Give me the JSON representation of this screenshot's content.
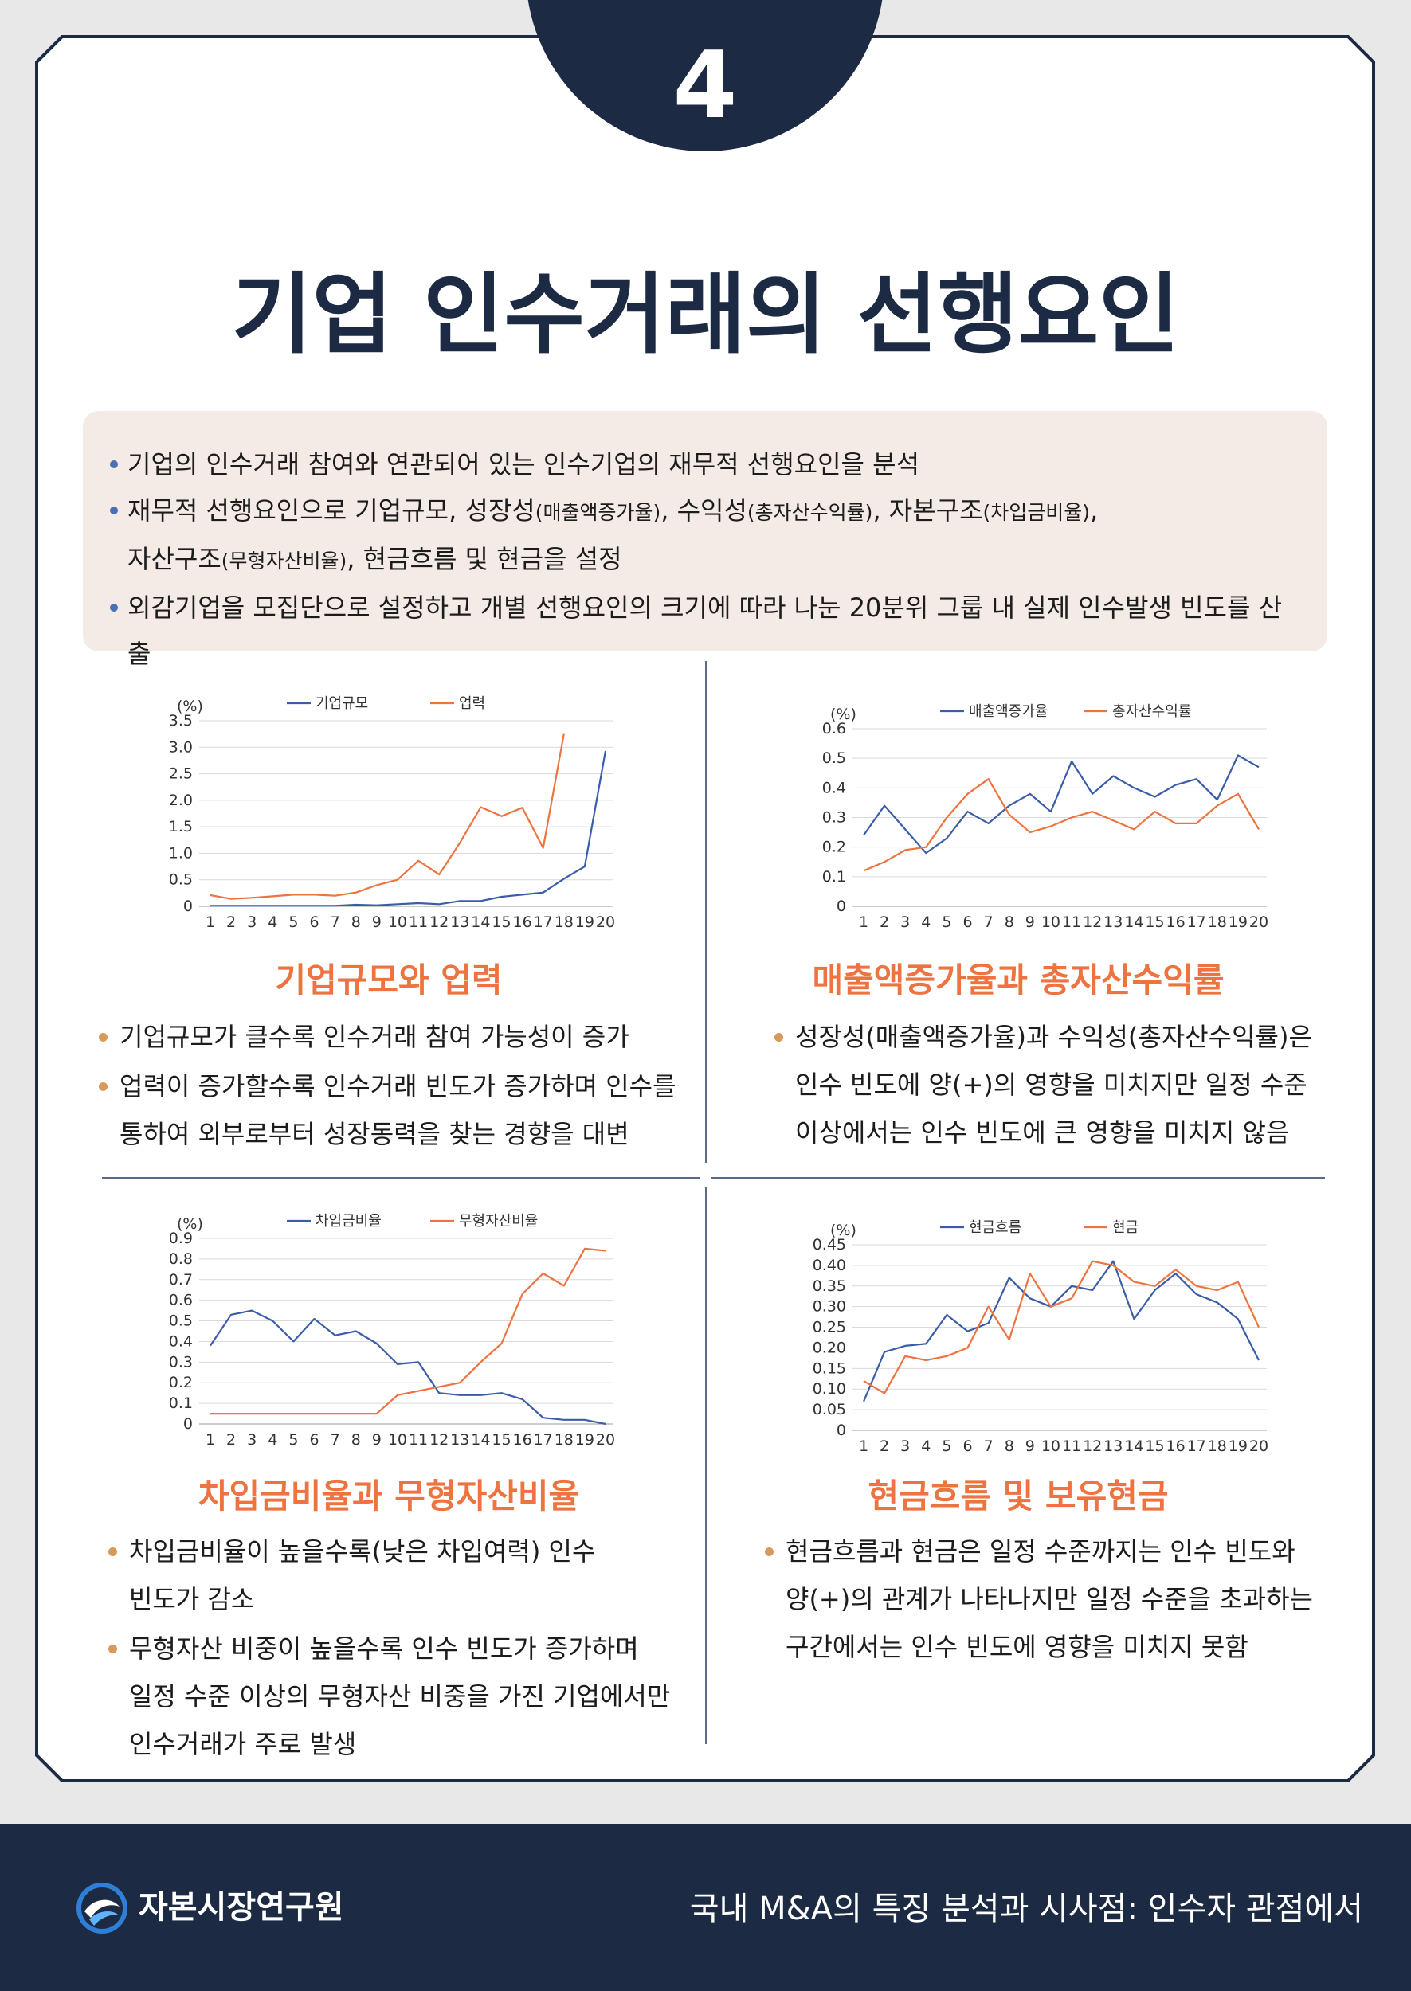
{
  "page": {
    "number": "4",
    "title": "기업 인수거래의 선행요인"
  },
  "summary": [
    {
      "parts": [
        {
          "text": "기업의 인수거래 참여와 연관되어 있는 인수기업의 재무적 선행요인을 분석",
          "small": false
        }
      ]
    },
    {
      "parts": [
        {
          "text": "재무적 선행요인으로 기업규모, 성장성",
          "small": false
        },
        {
          "text": "(매출액증가율)",
          "small": true
        },
        {
          "text": ", 수익성",
          "small": false
        },
        {
          "text": "(총자산수익률)",
          "small": true
        },
        {
          "text": ", 자본구조",
          "small": false
        },
        {
          "text": "(차입금비율)",
          "small": true
        },
        {
          "text": ",",
          "small": false
        }
      ]
    },
    {
      "indent": true,
      "parts": [
        {
          "text": "자산구조",
          "small": false
        },
        {
          "text": "(무형자산비율)",
          "small": true
        },
        {
          "text": ", 현금흐름 및 현금을 설정",
          "small": false
        }
      ]
    },
    {
      "parts": [
        {
          "text": "외감기업을 모집단으로 설정하고 개별 선행요인의 크기에 따라 나눈 20분위 그룹 내 실제 인수발생 빈도를 산출",
          "small": false
        }
      ]
    }
  ],
  "colors": {
    "blue": "#3b5da8",
    "orange": "#ed7340",
    "navy": "#1c2a44"
  },
  "panels": [
    {
      "title": "기업규모와 업력",
      "bullets": [
        [
          "기업규모가 클수록 인수거래 참여 가능성이 증가"
        ],
        [
          "업력이 증가할수록 인수거래 빈도가 증가하며 인수를",
          "통하여 외부로부터 성장동력을 찾는 경향을 대변"
        ]
      ]
    },
    {
      "title": "매출액증가율과 총자산수익률",
      "bullets": [
        [
          "성장성(매출액증가율)과 수익성(총자산수익률)은",
          "인수 빈도에 양(+)의 영향을 미치지만 일정 수준",
          "이상에서는 인수 빈도에 큰 영향을 미치지 않음"
        ]
      ]
    },
    {
      "title": "차입금비율과 무형자산비율",
      "bullets": [
        [
          "차입금비율이 높을수록(낮은 차입여력) 인수",
          "빈도가 감소"
        ],
        [
          "무형자산 비중이 높을수록 인수 빈도가 증가하며",
          "일정 수준 이상의 무형자산 비중을 가진 기업에서만",
          "인수거래가 주로 발생"
        ]
      ]
    },
    {
      "title": "현금흐름 및 보유현금",
      "bullets": [
        [
          "현금흐름과 현금은 일정 수준까지는 인수 빈도와",
          "양(+)의 관계가 나타나지만 일정 수준을 초과하는",
          "구간에서는 인수 빈도에 영향을 미치지 못함"
        ]
      ]
    }
  ],
  "chart_data": [
    {
      "type": "line",
      "unit_label": "(%)",
      "x": [
        1,
        2,
        3,
        4,
        5,
        6,
        7,
        8,
        9,
        10,
        11,
        12,
        13,
        14,
        15,
        16,
        17,
        18,
        19,
        20
      ],
      "ylim": [
        0,
        3.5
      ],
      "yticks": [
        "0",
        "0.5",
        "1.0",
        "1.5",
        "2.0",
        "2.5",
        "3.0",
        "3.5"
      ],
      "ytick_values": [
        0,
        0.5,
        1.0,
        1.5,
        2.0,
        2.5,
        3.0,
        3.5
      ],
      "legend": "top-center",
      "series": [
        {
          "name": "기업규모",
          "color": "#3b5da8",
          "values": [
            0.01,
            0.01,
            0.01,
            0.01,
            0.01,
            0.01,
            0.01,
            0.03,
            0.02,
            0.04,
            0.06,
            0.04,
            0.1,
            0.1,
            0.18,
            0.22,
            0.26,
            0.52,
            0.75,
            2.93
          ]
        },
        {
          "name": "업력",
          "color": "#ed7340",
          "values": [
            0.21,
            0.14,
            0.16,
            0.19,
            0.22,
            0.22,
            0.2,
            0.26,
            0.4,
            0.5,
            0.86,
            0.6,
            1.2,
            1.87,
            1.7,
            1.86,
            1.1,
            3.25,
            null,
            null
          ]
        }
      ]
    },
    {
      "type": "line",
      "unit_label": "(%)",
      "x": [
        1,
        2,
        3,
        4,
        5,
        6,
        7,
        8,
        9,
        10,
        11,
        12,
        13,
        14,
        15,
        16,
        17,
        18,
        19,
        20
      ],
      "ylim": [
        0,
        0.6
      ],
      "yticks": [
        "0",
        "0.1",
        "0.2",
        "0.3",
        "0.4",
        "0.5",
        "0.6"
      ],
      "ytick_values": [
        0,
        0.1,
        0.2,
        0.3,
        0.4,
        0.5,
        0.6
      ],
      "legend": "top-center",
      "series": [
        {
          "name": "매출액증가율",
          "color": "#3b5da8",
          "values": [
            0.24,
            0.34,
            0.26,
            0.18,
            0.23,
            0.32,
            0.28,
            0.34,
            0.38,
            0.32,
            0.49,
            0.38,
            0.44,
            0.4,
            0.37,
            0.41,
            0.43,
            0.36,
            0.51,
            0.47
          ]
        },
        {
          "name": "총자산수익률",
          "color": "#ed7340",
          "values": [
            0.12,
            0.15,
            0.19,
            0.2,
            0.3,
            0.38,
            0.43,
            0.31,
            0.25,
            0.27,
            0.3,
            0.32,
            0.29,
            0.26,
            0.32,
            0.28,
            0.28,
            0.34,
            0.38,
            0.26
          ]
        }
      ]
    },
    {
      "type": "line",
      "unit_label": "(%)",
      "x": [
        1,
        2,
        3,
        4,
        5,
        6,
        7,
        8,
        9,
        10,
        11,
        12,
        13,
        14,
        15,
        16,
        17,
        18,
        19,
        20
      ],
      "ylim": [
        0,
        0.9
      ],
      "yticks": [
        "0",
        "0.1",
        "0.2",
        "0.3",
        "0.4",
        "0.5",
        "0.6",
        "0.7",
        "0.8",
        "0.9"
      ],
      "ytick_values": [
        0,
        0.1,
        0.2,
        0.3,
        0.4,
        0.5,
        0.6,
        0.7,
        0.8,
        0.9
      ],
      "legend": "top-center",
      "series": [
        {
          "name": "차입금비율",
          "color": "#3b5da8",
          "values": [
            0.38,
            0.53,
            0.55,
            0.5,
            0.4,
            0.51,
            0.43,
            0.45,
            0.39,
            0.29,
            0.3,
            0.15,
            0.14,
            0.14,
            0.15,
            0.12,
            0.03,
            0.02,
            0.02,
            0.0
          ]
        },
        {
          "name": "무형자산비율",
          "color": "#ed7340",
          "values": [
            0.05,
            0.05,
            0.05,
            0.05,
            0.05,
            0.05,
            0.05,
            0.05,
            0.05,
            0.14,
            0.16,
            0.18,
            0.2,
            0.3,
            0.39,
            0.63,
            0.73,
            0.67,
            0.85,
            0.84
          ]
        }
      ]
    },
    {
      "type": "line",
      "unit_label": "(%)",
      "x": [
        1,
        2,
        3,
        4,
        5,
        6,
        7,
        8,
        9,
        10,
        11,
        12,
        13,
        14,
        15,
        16,
        17,
        18,
        19,
        20
      ],
      "ylim": [
        0,
        0.45
      ],
      "yticks": [
        "0",
        "0.05",
        "0.10",
        "0.15",
        "0.20",
        "0.25",
        "0.30",
        "0.35",
        "0.40",
        "0.45"
      ],
      "ytick_values": [
        0,
        0.05,
        0.1,
        0.15,
        0.2,
        0.25,
        0.3,
        0.35,
        0.4,
        0.45
      ],
      "legend": "top-center",
      "series": [
        {
          "name": "현금흐름",
          "color": "#3b5da8",
          "values": [
            0.07,
            0.19,
            0.205,
            0.21,
            0.28,
            0.24,
            0.26,
            0.37,
            0.32,
            0.3,
            0.35,
            0.34,
            0.41,
            0.27,
            0.34,
            0.38,
            0.33,
            0.31,
            0.27,
            0.17
          ]
        },
        {
          "name": "현금",
          "color": "#ed7340",
          "values": [
            0.12,
            0.09,
            0.18,
            0.17,
            0.18,
            0.2,
            0.3,
            0.22,
            0.38,
            0.3,
            0.32,
            0.41,
            0.4,
            0.36,
            0.35,
            0.39,
            0.35,
            0.34,
            0.36,
            0.25
          ]
        }
      ]
    }
  ],
  "footer": {
    "org": "자본시장연구원",
    "title": "국내 M&A의 특징 분석과 시사점: 인수자 관점에서"
  }
}
